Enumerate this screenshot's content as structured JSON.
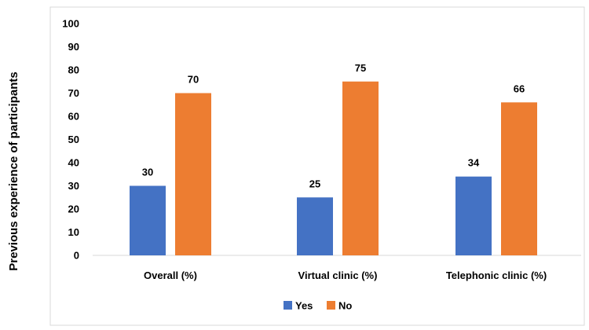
{
  "chart_data": {
    "type": "bar",
    "categories": [
      "Overall (%)",
      "Virtual clinic (%)",
      "Telephonic clinic (%)"
    ],
    "series": [
      {
        "name": "Yes",
        "values": [
          30,
          25,
          34
        ],
        "color": "#4472C4"
      },
      {
        "name": "No",
        "values": [
          70,
          75,
          66
        ],
        "color": "#ED7D31"
      }
    ],
    "ylabel": "Previous experience of participants",
    "xlabel": "",
    "ylim": [
      0,
      100
    ],
    "yticks": [
      0,
      10,
      20,
      30,
      40,
      50,
      60,
      70,
      80,
      90,
      100
    ],
    "grid": false,
    "legend": "bottom"
  }
}
